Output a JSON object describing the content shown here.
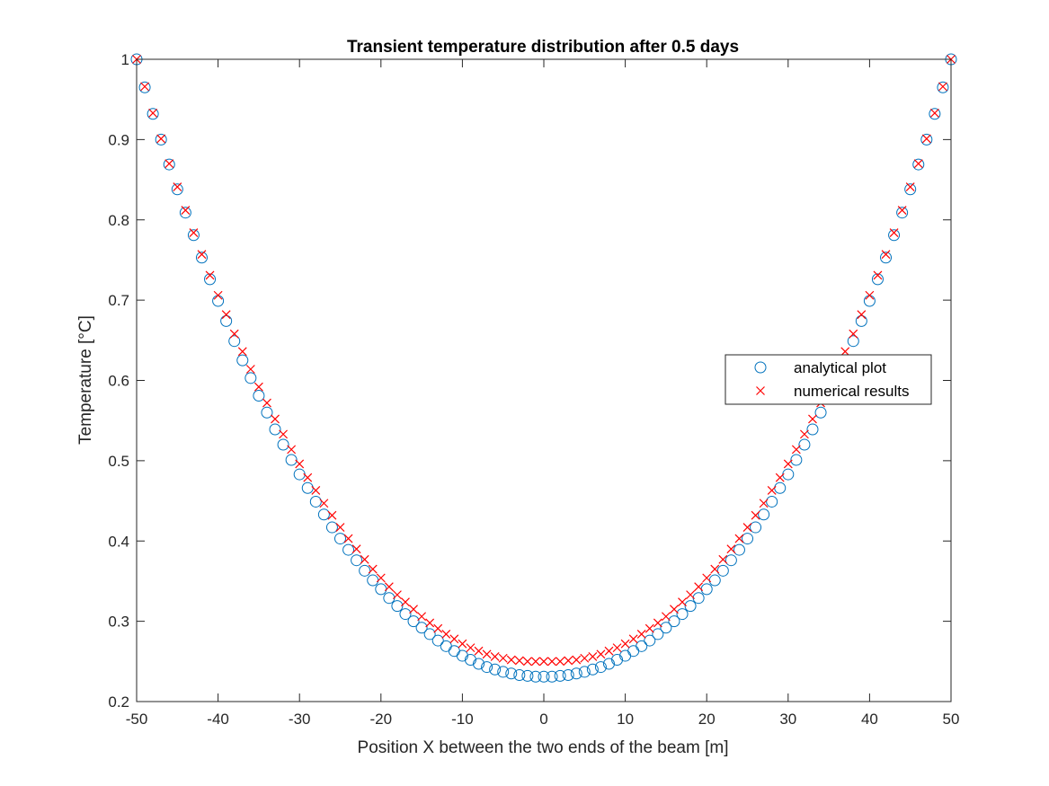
{
  "chart_data": {
    "type": "scatter",
    "title": "Transient temperature distribution after 0.5 days",
    "xlabel": "Position X between the two ends of the beam [m]",
    "ylabel": "Temperature [°C]",
    "xlim": [
      -50,
      50
    ],
    "ylim": [
      0.2,
      1
    ],
    "xticks": [
      -50,
      -40,
      -30,
      -20,
      -10,
      0,
      10,
      20,
      30,
      40,
      50
    ],
    "yticks": [
      0.2,
      0.3,
      0.4,
      0.5,
      0.6,
      0.7,
      0.8,
      0.9,
      1
    ],
    "ytick_labels": [
      "0.2",
      "0.3",
      "0.4",
      "0.5",
      "0.6",
      "0.7",
      "0.8",
      "0.9",
      "1"
    ],
    "grid": false,
    "legend_position": "right",
    "x": [
      -50,
      -49,
      -48,
      -47,
      -46,
      -45,
      -44,
      -43,
      -42,
      -41,
      -40,
      -39,
      -38,
      -37,
      -36,
      -35,
      -34,
      -33,
      -32,
      -31,
      -30,
      -29,
      -28,
      -27,
      -26,
      -25,
      -24,
      -23,
      -22,
      -21,
      -20,
      -19,
      -18,
      -17,
      -16,
      -15,
      -14,
      -13,
      -12,
      -11,
      -10,
      -9,
      -8,
      -7,
      -6,
      -5,
      -4,
      -3,
      -2,
      -1,
      0,
      1,
      2,
      3,
      4,
      5,
      6,
      7,
      8,
      9,
      10,
      11,
      12,
      13,
      14,
      15,
      16,
      17,
      18,
      19,
      20,
      21,
      22,
      23,
      24,
      25,
      26,
      27,
      28,
      29,
      30,
      31,
      32,
      33,
      34,
      35,
      36,
      37,
      38,
      39,
      40,
      41,
      42,
      43,
      44,
      45,
      46,
      47,
      48,
      49,
      50
    ],
    "series": [
      {
        "name": "analytical plot",
        "marker": "circle",
        "color": "#0072BD",
        "values": [
          1.0,
          0.965,
          0.932,
          0.9,
          0.869,
          0.838,
          0.809,
          0.781,
          0.753,
          0.726,
          0.699,
          0.674,
          0.649,
          0.625,
          0.603,
          0.581,
          0.56,
          0.539,
          0.52,
          0.501,
          0.483,
          0.466,
          0.449,
          0.433,
          0.417,
          0.403,
          0.389,
          0.376,
          0.363,
          0.351,
          0.34,
          0.329,
          0.319,
          0.309,
          0.3,
          0.292,
          0.284,
          0.276,
          0.269,
          0.263,
          0.257,
          0.252,
          0.247,
          0.243,
          0.24,
          0.237,
          0.235,
          0.233,
          0.232,
          0.231,
          0.231,
          0.231,
          0.232,
          0.233,
          0.235,
          0.237,
          0.24,
          0.243,
          0.247,
          0.252,
          0.257,
          0.263,
          0.269,
          0.276,
          0.284,
          0.292,
          0.3,
          0.309,
          0.319,
          0.329,
          0.34,
          0.351,
          0.363,
          0.376,
          0.389,
          0.403,
          0.417,
          0.433,
          0.449,
          0.466,
          0.483,
          0.501,
          0.52,
          0.539,
          0.56,
          0.581,
          0.603,
          0.625,
          0.649,
          0.674,
          0.699,
          0.726,
          0.753,
          0.781,
          0.809,
          0.838,
          0.869,
          0.9,
          0.932,
          0.965,
          1.0
        ]
      },
      {
        "name": "numerical results",
        "marker": "x",
        "color": "#FF0000",
        "values": [
          1.0,
          0.966,
          0.933,
          0.901,
          0.87,
          0.841,
          0.812,
          0.784,
          0.757,
          0.731,
          0.706,
          0.682,
          0.658,
          0.636,
          0.614,
          0.592,
          0.572,
          0.552,
          0.533,
          0.514,
          0.496,
          0.479,
          0.463,
          0.447,
          0.432,
          0.417,
          0.403,
          0.39,
          0.377,
          0.365,
          0.354,
          0.343,
          0.333,
          0.324,
          0.315,
          0.306,
          0.298,
          0.291,
          0.284,
          0.278,
          0.272,
          0.267,
          0.263,
          0.259,
          0.256,
          0.254,
          0.252,
          0.251,
          0.25,
          0.25,
          0.25,
          0.25,
          0.25,
          0.251,
          0.252,
          0.254,
          0.256,
          0.259,
          0.263,
          0.267,
          0.272,
          0.278,
          0.284,
          0.291,
          0.298,
          0.306,
          0.315,
          0.324,
          0.333,
          0.343,
          0.354,
          0.365,
          0.377,
          0.39,
          0.403,
          0.417,
          0.432,
          0.447,
          0.463,
          0.479,
          0.496,
          0.514,
          0.533,
          0.552,
          0.572,
          0.592,
          0.614,
          0.636,
          0.658,
          0.682,
          0.706,
          0.731,
          0.757,
          0.784,
          0.812,
          0.841,
          0.87,
          0.901,
          0.933,
          0.966,
          1.0
        ]
      }
    ]
  }
}
